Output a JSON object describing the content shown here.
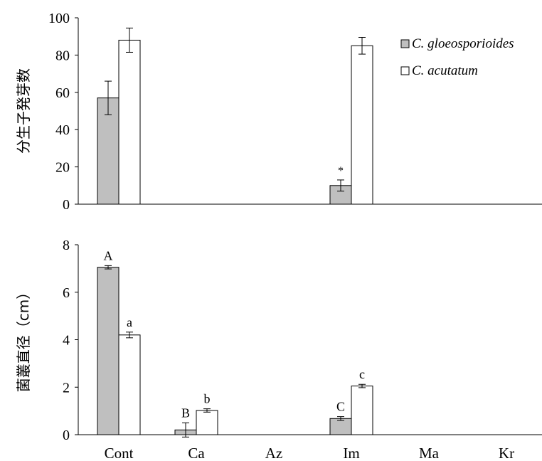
{
  "chart_data": [
    {
      "type": "bar",
      "ylabel": "分生子発芽数",
      "ylim": [
        0,
        100
      ],
      "yticks": [
        0,
        20,
        40,
        60,
        80,
        100
      ],
      "categories": [
        "Cont",
        "Ca",
        "Az",
        "Im",
        "Ma",
        "Kr"
      ],
      "series": [
        {
          "name": "C. gloeosporioides",
          "color": "#bfbfbf",
          "values": [
            57,
            0,
            0,
            10,
            0,
            0
          ],
          "errors": [
            9,
            0,
            0,
            3,
            0,
            0
          ]
        },
        {
          "name": "C. acutatum",
          "color": "#ffffff",
          "values": [
            88,
            0,
            0,
            85,
            0,
            0
          ],
          "errors": [
            6.5,
            0,
            0,
            4.5,
            0,
            0
          ]
        }
      ],
      "legend_position": "top-right",
      "annotations": [
        {
          "text": "*",
          "category": "Im",
          "series": 0
        }
      ]
    },
    {
      "type": "bar",
      "ylabel": "菌叢直径（cm）",
      "ylim": [
        0,
        8
      ],
      "yticks": [
        0,
        2,
        4,
        6,
        8
      ],
      "categories": [
        "Cont",
        "Ca",
        "Az",
        "Im",
        "Ma",
        "Kr"
      ],
      "series": [
        {
          "name": "C. gloeosporioides",
          "color": "#bfbfbf",
          "values": [
            7.05,
            0.2,
            0,
            0.68,
            0,
            0
          ],
          "errors": [
            0.07,
            0.3,
            0,
            0.08,
            0,
            0
          ]
        },
        {
          "name": "C. acutatum",
          "color": "#ffffff",
          "values": [
            4.2,
            1.02,
            0,
            2.05,
            0,
            0
          ],
          "errors": [
            0.12,
            0.07,
            0,
            0.07,
            0,
            0
          ]
        }
      ],
      "annotations": [
        {
          "text": "A",
          "category": "Cont",
          "series": 0
        },
        {
          "text": "a",
          "category": "Cont",
          "series": 1
        },
        {
          "text": "B",
          "category": "Ca",
          "series": 0
        },
        {
          "text": "b",
          "category": "Ca",
          "series": 1
        },
        {
          "text": "C",
          "category": "Im",
          "series": 0
        },
        {
          "text": "c",
          "category": "Im",
          "series": 1
        }
      ]
    }
  ]
}
